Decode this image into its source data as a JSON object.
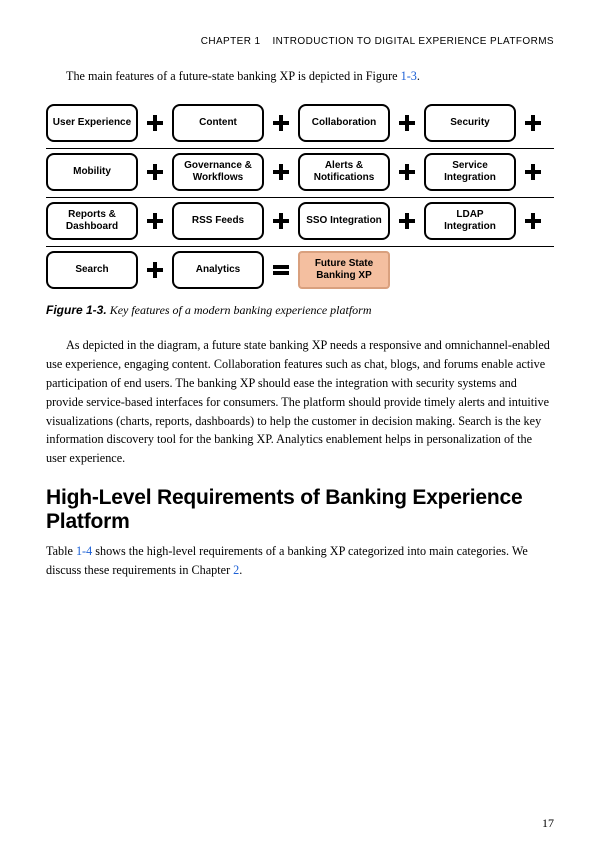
{
  "header": {
    "chapter_label": "CHAPTER 1",
    "chapter_title": "INTRODUCTION TO DIGITAL EXPERIENCE PLATFORMS"
  },
  "intro_para": {
    "pre": "The main features of a future-state banking XP is depicted in Figure ",
    "ref": "1-3",
    "post": "."
  },
  "diagram": {
    "box_border_color": "#000000",
    "box_bg": "#ffffff",
    "result_bg": "#f4bfa0",
    "result_border": "#d9a07e",
    "rows": [
      {
        "boxes": [
          "User Experience",
          "Content",
          "Collaboration",
          "Security"
        ],
        "trailing_plus": true
      },
      {
        "boxes": [
          "Mobility",
          "Governance & Workflows",
          "Alerts & Notifications",
          "Service Integration"
        ],
        "trailing_plus": true
      },
      {
        "boxes": [
          "Reports & Dashboard",
          "RSS Feeds",
          "SSO Integration",
          "LDAP Integration"
        ],
        "trailing_plus": true
      },
      {
        "boxes": [
          "Search",
          "Analytics"
        ],
        "equals_then": "Future State Banking XP"
      }
    ]
  },
  "caption": {
    "num": "Figure 1-3.",
    "text": "Key features of a modern banking experience platform"
  },
  "para_after": "As depicted in the diagram, a future state banking XP needs a responsive and omnichannel-enabled use experience, engaging content. Collaboration features such as chat, blogs, and forums enable active participation of end users. The banking XP should ease the integration with security systems and provide service-based interfaces for consumers. The platform should provide timely alerts and intuitive visualizations (charts, reports, dashboards) to help the customer in decision making. Search is the key information discovery tool for the banking XP. Analytics enablement helps in personalization of the user experience.",
  "section_heading": "High-Level Requirements of Banking Experience Platform",
  "para_last": {
    "p1": "Table ",
    "ref1": "1-4",
    "p2": " shows the high-level requirements of a banking XP categorized into main categories. We discuss these requirements in Chapter ",
    "ref2": "2",
    "p3": "."
  },
  "page_number": "17"
}
